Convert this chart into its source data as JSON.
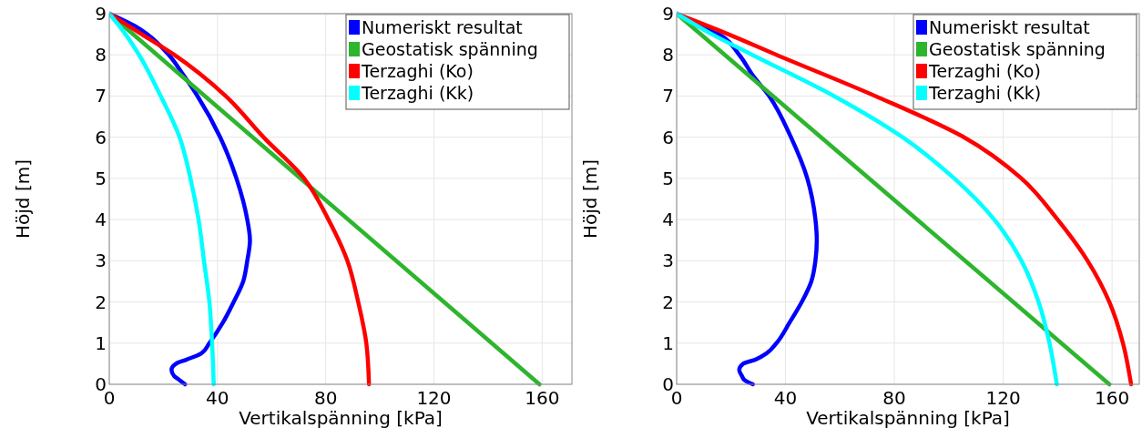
{
  "chart_data": [
    {
      "type": "line",
      "xlabel": "Vertikalspänning [kPa]",
      "ylabel": "Höjd [m]",
      "xlim": [
        0,
        171
      ],
      "ylim": [
        0,
        9
      ],
      "xticks": [
        0,
        40,
        80,
        120,
        160
      ],
      "yticks": [
        0,
        1,
        2,
        3,
        4,
        5,
        6,
        7,
        8,
        9
      ],
      "grid": true,
      "legend": "top right",
      "series": [
        {
          "name": "Numeriskt resultat",
          "color": "#0000ff",
          "x": [
            0,
            9.4,
            14,
            22,
            27.5,
            32.6,
            41,
            47,
            51,
            52,
            51,
            49.5,
            46,
            42,
            37,
            34,
            28.6,
            24.7,
            23,
            24,
            26,
            28
          ],
          "values": [
            9,
            8.7,
            8.5,
            8,
            7.5,
            7,
            6,
            5,
            4,
            3.5,
            3,
            2.5,
            2,
            1.5,
            1,
            0.75,
            0.6,
            0.5,
            0.35,
            0.2,
            0.1,
            0
          ]
        },
        {
          "name": "Geostatisk spänning",
          "color": "#2db52d",
          "x": [
            0,
            159
          ],
          "values": [
            9,
            0
          ]
        },
        {
          "name": "Terzaghi (Ko)",
          "color": "#ff0000",
          "x": [
            0,
            12,
            24,
            43,
            57,
            72,
            81,
            88,
            92,
            95,
            96
          ],
          "values": [
            9,
            8.5,
            8,
            7,
            6,
            5,
            4,
            3,
            2,
            1,
            0
          ]
        },
        {
          "name": "Terzaghi (Kk)",
          "color": "#00ffff",
          "x": [
            0,
            6,
            11,
            19,
            26,
            30,
            33,
            35,
            37,
            38,
            38.6
          ],
          "values": [
            9,
            8.5,
            8,
            7,
            6,
            5,
            4,
            3,
            2,
            1,
            0
          ]
        }
      ]
    },
    {
      "type": "line",
      "xlabel": "Vertikalspänning [kPa]",
      "ylabel": "Höjd [m]",
      "xlim": [
        0,
        170
      ],
      "ylim": [
        0,
        9
      ],
      "xticks": [
        0,
        40,
        80,
        120,
        160
      ],
      "yticks": [
        0,
        1,
        2,
        3,
        4,
        5,
        6,
        7,
        8,
        9
      ],
      "grid": true,
      "legend": "top right",
      "series": [
        {
          "name": "Numeriskt resultat",
          "color": "#0000ff",
          "x": [
            0,
            9,
            15.5,
            23,
            28,
            34,
            42,
            48,
            51,
            51.5,
            51,
            49.5,
            46,
            41.5,
            36.7,
            33,
            29,
            24.4,
            23,
            24,
            25,
            28
          ],
          "values": [
            9,
            8.7,
            8.5,
            8,
            7.5,
            7,
            6,
            5,
            4,
            3.5,
            3,
            2.5,
            2,
            1.5,
            1,
            0.75,
            0.6,
            0.5,
            0.35,
            0.2,
            0.1,
            0
          ]
        },
        {
          "name": "Geostatisk spänning",
          "color": "#2db52d",
          "x": [
            0,
            159
          ],
          "values": [
            9,
            0
          ]
        },
        {
          "name": "Terzaghi (Ko)",
          "color": "#ff0000",
          "x": [
            0,
            19,
            36.7,
            73,
            105.6,
            126.7,
            140,
            151,
            159,
            164,
            167
          ],
          "values": [
            9,
            8.5,
            8,
            7,
            6,
            5,
            4,
            3,
            2,
            1,
            0
          ]
        },
        {
          "name": "Terzaghi (Kk)",
          "color": "#00ffff",
          "x": [
            0,
            13,
            27.8,
            57.8,
            83,
            102,
            116.7,
            126.7,
            133,
            137,
            139.7
          ],
          "values": [
            9,
            8.5,
            8,
            7,
            6,
            5,
            4,
            3,
            2,
            1,
            0
          ]
        }
      ]
    }
  ]
}
